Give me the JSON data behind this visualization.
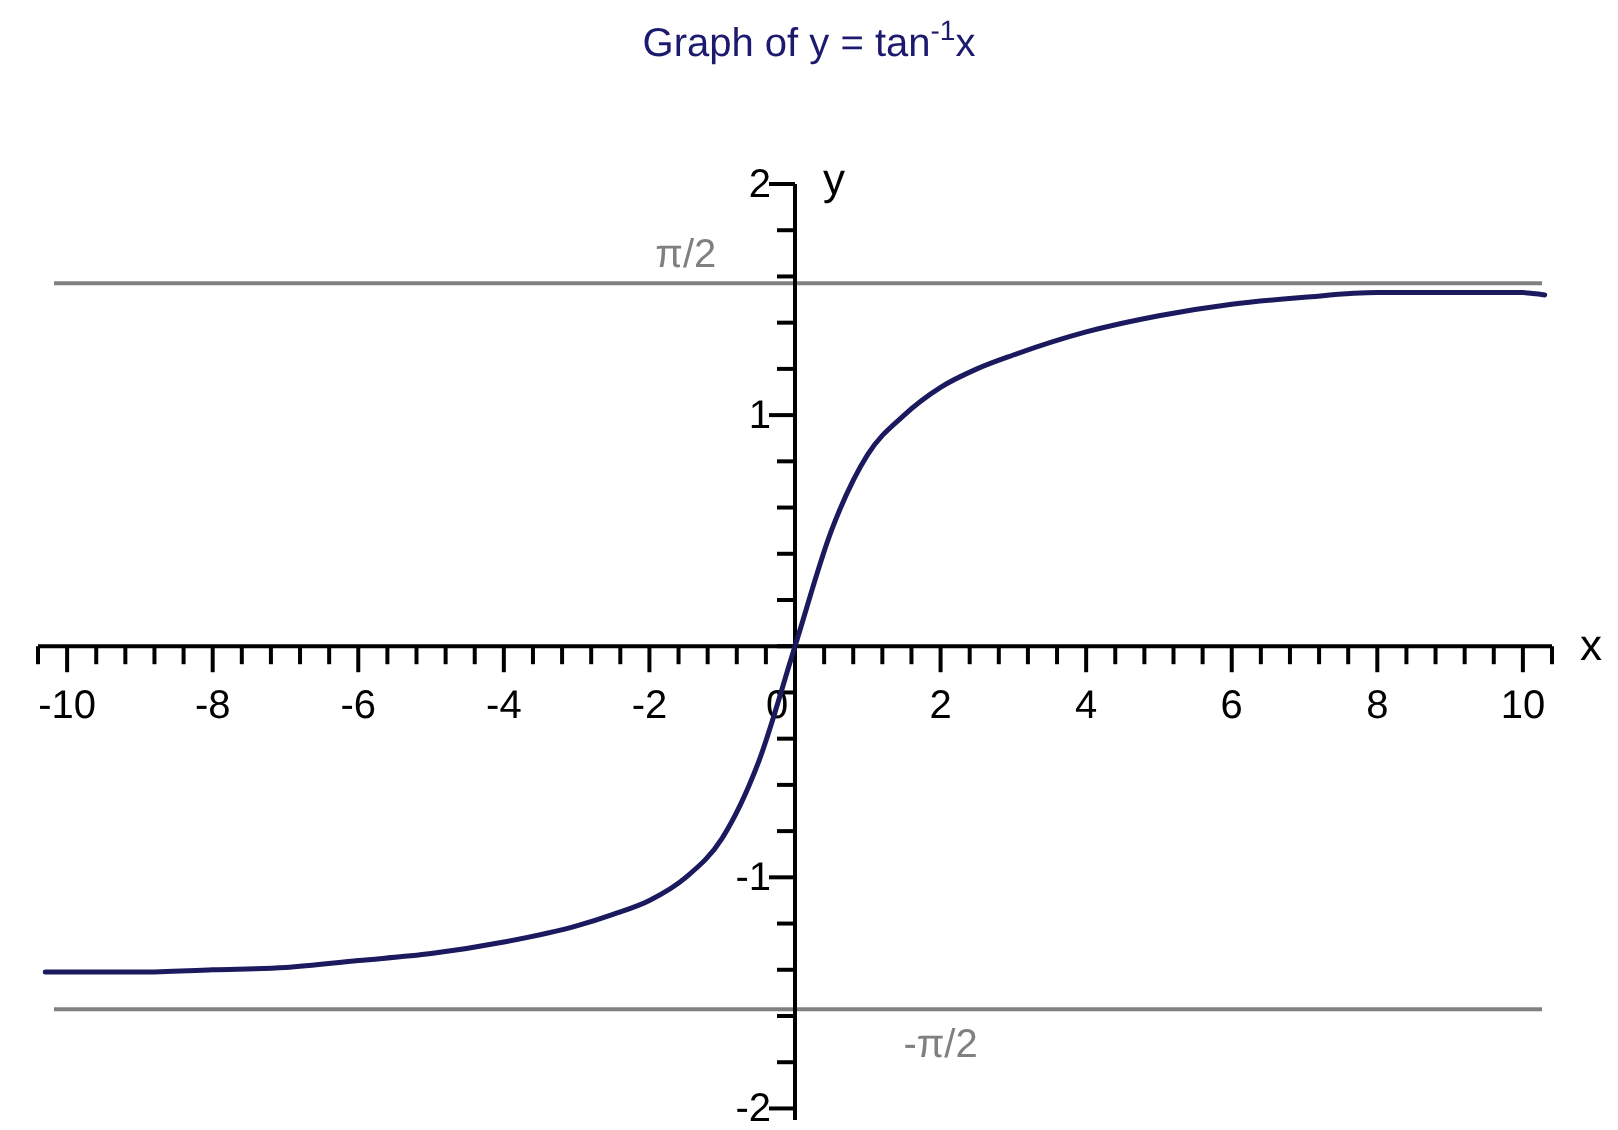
{
  "chart_data": {
    "type": "line",
    "title": "Graph of y = tan$^{-1}$x",
    "xlabel": "x",
    "ylabel": "y",
    "x": [
      -10.3,
      -9,
      -8,
      -7,
      -6,
      -5,
      -4,
      -3,
      -2.5,
      -2,
      -1.5,
      -1,
      -0.5,
      0,
      0.5,
      1,
      1.5,
      2,
      2.5,
      3,
      4,
      5,
      6,
      7,
      8,
      9,
      10,
      10.3
    ],
    "series": [
      {
        "color": "#1c1a5e",
        "values": [
          -1.41,
          -1.41,
          -1.4,
          -1.39,
          -1.36,
          -1.33,
          -1.28,
          -1.21,
          -1.16,
          -1.1,
          -1.0,
          -0.83,
          -0.5,
          0,
          0.5,
          0.83,
          1.0,
          1.12,
          1.2,
          1.26,
          1.36,
          1.43,
          1.48,
          1.51,
          1.53,
          1.53,
          1.53,
          1.52
        ]
      }
    ],
    "xlim": [
      -10.4,
      10.4
    ],
    "ylim": [
      -2.05,
      2
    ],
    "xticks": [
      {
        "value": -10.4,
        "label": null
      },
      -10,
      {
        "value": -9.6,
        "label": null
      },
      {
        "value": -9.2,
        "label": null
      },
      {
        "value": -8.8,
        "label": null
      },
      {
        "value": -8.4,
        "label": null
      },
      -8,
      {
        "value": -7.6,
        "label": null
      },
      {
        "value": -7.2,
        "label": null
      },
      {
        "value": -6.8,
        "label": null
      },
      {
        "value": -6.4,
        "label": null
      },
      -6,
      {
        "value": -5.6,
        "label": null
      },
      {
        "value": -5.2,
        "label": null
      },
      {
        "value": -4.8,
        "label": null
      },
      {
        "value": -4.4,
        "label": null
      },
      -4,
      {
        "value": -3.6,
        "label": null
      },
      {
        "value": -3.2,
        "label": null
      },
      {
        "value": -2.8,
        "label": null
      },
      {
        "value": -2.4,
        "label": null
      },
      -2,
      {
        "value": -1.6,
        "label": null
      },
      {
        "value": -1.2,
        "label": null
      },
      {
        "value": -0.8,
        "label": null
      },
      {
        "value": -0.4,
        "label": null
      },
      0,
      {
        "value": 0.4,
        "label": null
      },
      {
        "value": 0.8,
        "label": null
      },
      {
        "value": 1.2,
        "label": null
      },
      {
        "value": 1.6,
        "label": null
      },
      2,
      {
        "value": 2.4,
        "label": null
      },
      {
        "value": 2.8,
        "label": null
      },
      {
        "value": 3.2,
        "label": null
      },
      {
        "value": 3.6,
        "label": null
      },
      4,
      {
        "value": 4.4,
        "label": null
      },
      {
        "value": 4.8,
        "label": null
      },
      {
        "value": 5.2,
        "label": null
      },
      {
        "value": 5.6,
        "label": null
      },
      6,
      {
        "value": 6.4,
        "label": null
      },
      {
        "value": 6.8,
        "label": null
      },
      {
        "value": 7.2,
        "label": null
      },
      {
        "value": 7.6,
        "label": null
      },
      8,
      {
        "value": 8.4,
        "label": null
      },
      {
        "value": 8.8,
        "label": null
      },
      {
        "value": 9.2,
        "label": null
      },
      {
        "value": 9.6,
        "label": null
      },
      10,
      {
        "value": 10.4,
        "label": null
      }
    ],
    "yticks": [
      -2,
      {
        "value": -1.8,
        "label": null
      },
      {
        "value": -1.6,
        "label": null
      },
      {
        "value": -1.4,
        "label": null
      },
      {
        "value": -1.2,
        "label": null
      },
      -1,
      {
        "value": -0.8,
        "label": null
      },
      {
        "value": -0.6,
        "label": null
      },
      {
        "value": -0.4,
        "label": null
      },
      {
        "value": -0.2,
        "label": null
      },
      {
        "value": 0,
        "label": null
      },
      {
        "value": 0.2,
        "label": null
      },
      {
        "value": 0.4,
        "label": null
      },
      {
        "value": 0.6,
        "label": null
      },
      {
        "value": 0.8,
        "label": null
      },
      1,
      {
        "value": 1.2,
        "label": null
      },
      {
        "value": 1.4,
        "label": null
      },
      {
        "value": 1.6,
        "label": null
      },
      {
        "value": 1.8,
        "label": null
      },
      2
    ],
    "ref_lines": [
      {
        "axis": "y",
        "value": 1.5708,
        "label": "π/2",
        "color": "#808080"
      },
      {
        "axis": "y",
        "value": -1.5708,
        "label": "-π/2",
        "color": "#808080"
      }
    ],
    "marker": "none",
    "line_style": "solid"
  }
}
